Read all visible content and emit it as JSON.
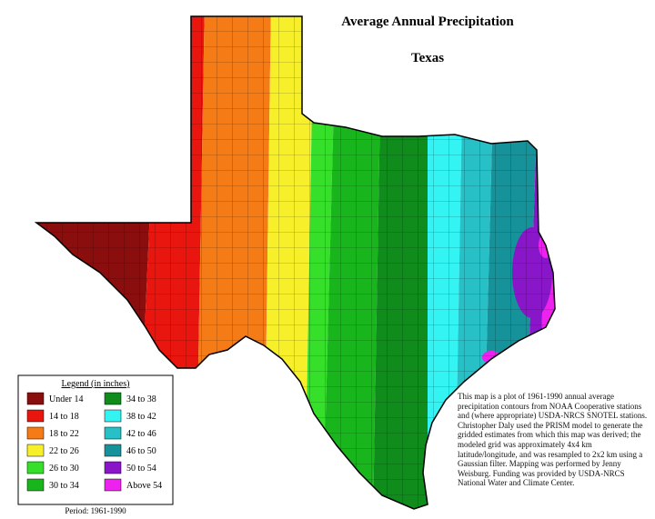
{
  "title": "Average Annual Precipitation",
  "subtitle": "Texas",
  "legend": {
    "title": "Legend (in inches)",
    "items": [
      {
        "label": "Under 14",
        "color": "#8b0e0e"
      },
      {
        "label": "14 to 18",
        "color": "#e8160f"
      },
      {
        "label": "18 to 22",
        "color": "#f47b16"
      },
      {
        "label": "22 to 26",
        "color": "#f7ef2a"
      },
      {
        "label": "26 to 30",
        "color": "#35df2a"
      },
      {
        "label": "30 to 34",
        "color": "#19b51d"
      },
      {
        "label": "34 to 38",
        "color": "#0f8c1c"
      },
      {
        "label": "38 to 42",
        "color": "#33f3f3"
      },
      {
        "label": "42 to 46",
        "color": "#27c0c6"
      },
      {
        "label": "46 to 50",
        "color": "#16939a"
      },
      {
        "label": "50 to 54",
        "color": "#8a16c9"
      },
      {
        "label": "Above 54",
        "color": "#ee22ee"
      }
    ]
  },
  "period": "Period: 1961-1990",
  "note": "This map is a plot of 1961-1990 annual average precipitation contours from NOAA Cooperative stations and (where appropriate) USDA-NRCS SNOTEL stations. Christopher Daly used the PRISM model to generate the gridded estimates from which this map was derived; the modeled grid was approximately 4x4 km latitude/longitude, and was resampled to 2x2 km using a Gaussian filter. Mapping was performed by Jenny Weisburg. Funding was provided by USDA-NRCS National Water and Climate Center."
}
